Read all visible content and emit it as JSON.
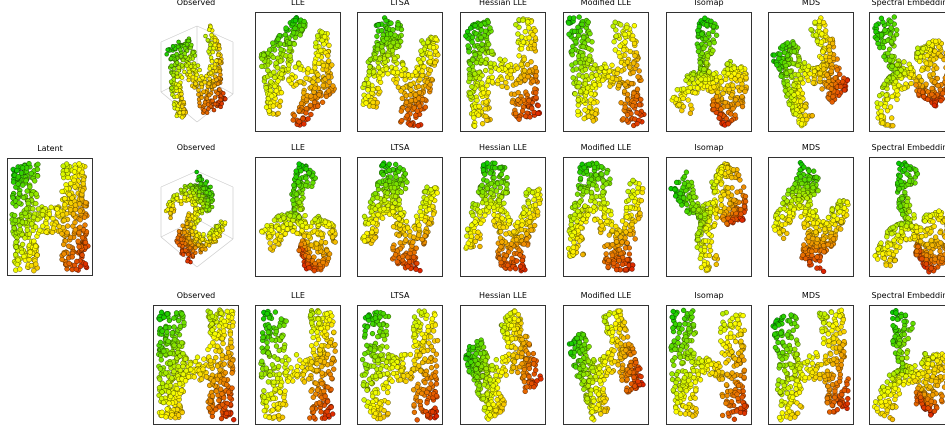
{
  "chart_data": [
    {
      "type": "scatter",
      "title": "Latent",
      "shape": "H",
      "colormap": [
        "#00ff00",
        "#ffff00",
        "#ff0000"
      ]
    },
    {
      "type": "scatter",
      "title": "Observed",
      "row": 1,
      "projection": "3d"
    },
    {
      "type": "scatter",
      "title": "LLE",
      "row": 1
    },
    {
      "type": "scatter",
      "title": "LTSA",
      "row": 1
    },
    {
      "type": "scatter",
      "title": "Hessian LLE",
      "row": 1
    },
    {
      "type": "scatter",
      "title": "Modified LLE",
      "row": 1
    },
    {
      "type": "scatter",
      "title": "Isomap",
      "row": 1
    },
    {
      "type": "scatter",
      "title": "MDS",
      "row": 1
    },
    {
      "type": "scatter",
      "title": "Spectral Embedding",
      "row": 1
    },
    {
      "type": "scatter",
      "title": "Observed",
      "row": 2,
      "projection": "3d"
    },
    {
      "type": "scatter",
      "title": "LLE",
      "row": 2
    },
    {
      "type": "scatter",
      "title": "LTSA",
      "row": 2
    },
    {
      "type": "scatter",
      "title": "Hessian LLE",
      "row": 2
    },
    {
      "type": "scatter",
      "title": "Modified LLE",
      "row": 2
    },
    {
      "type": "scatter",
      "title": "Isomap",
      "row": 2
    },
    {
      "type": "scatter",
      "title": "MDS",
      "row": 2
    },
    {
      "type": "scatter",
      "title": "Spectral Embedding",
      "row": 2
    },
    {
      "type": "scatter",
      "title": "Observed",
      "row": 3
    },
    {
      "type": "scatter",
      "title": "LLE",
      "row": 3
    },
    {
      "type": "scatter",
      "title": "LTSA",
      "row": 3
    },
    {
      "type": "scatter",
      "title": "Hessian LLE",
      "row": 3
    },
    {
      "type": "scatter",
      "title": "Modified LLE",
      "row": 3
    },
    {
      "type": "scatter",
      "title": "Isomap",
      "row": 3
    },
    {
      "type": "scatter",
      "title": "MDS",
      "row": 3
    },
    {
      "type": "scatter",
      "title": "Spectral Embedding",
      "row": 3
    }
  ]
}
